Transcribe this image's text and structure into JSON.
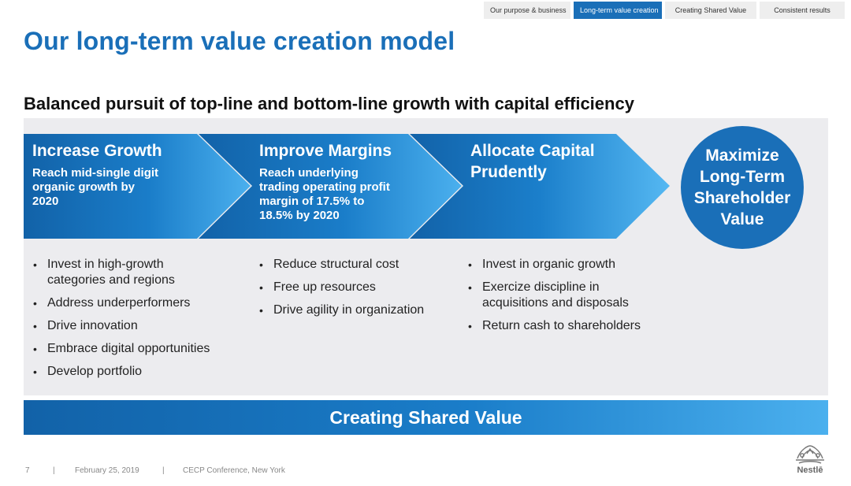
{
  "nav": {
    "tabs": [
      {
        "label": "Our purpose & business"
      },
      {
        "label": "Long-term value creation"
      },
      {
        "label": "Creating Shared Value"
      },
      {
        "label": "Consistent results"
      }
    ]
  },
  "title": "Our long-term value creation model",
  "subtitle": "Balanced pursuit of top-line and bottom-line growth with capital efficiency",
  "pillars": [
    {
      "heading": "Increase Growth",
      "sub": [
        "Reach mid-single digit",
        "organic growth by",
        "2020"
      ],
      "bullets": [
        [
          "Invest in high-growth",
          "categories and regions"
        ],
        [
          "Address underperformers"
        ],
        [
          "Drive innovation"
        ],
        [
          "Embrace digital opportunities"
        ],
        [
          "Develop portfolio"
        ]
      ]
    },
    {
      "heading": "Improve Margins",
      "sub": [
        "Reach underlying",
        "trading operating profit",
        "margin of 17.5% to",
        "18.5% by 2020"
      ],
      "bullets": [
        [
          "Reduce structural cost"
        ],
        [
          "Free up resources"
        ],
        [
          "Drive agility in organization"
        ]
      ]
    },
    {
      "heading": [
        "Allocate Capital",
        "Prudently"
      ],
      "bullets": [
        [
          "Invest in organic growth"
        ],
        [
          "Exercize discipline in",
          "acquisitions and disposals"
        ],
        [
          "Return cash to shareholders"
        ]
      ]
    }
  ],
  "goal": [
    "Maximize",
    "Long-Term",
    "Shareholder",
    "Value"
  ],
  "banner": "Creating Shared Value",
  "footer": {
    "page": "7",
    "sep": "|",
    "date": "February 25, 2019",
    "event": "CECP Conference, New York"
  },
  "logo": {
    "name": "Nestlé logo",
    "text": "Nestlē"
  },
  "colors": {
    "accent": "#1a6fb8",
    "arrow_light": "#4bb0ee",
    "panel": "#ececef"
  }
}
